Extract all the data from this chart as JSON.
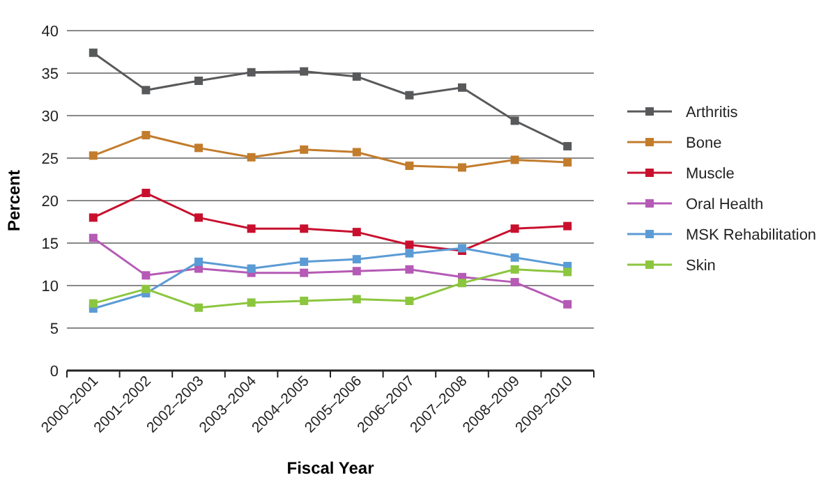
{
  "chart_data": {
    "type": "line",
    "xlabel": "Fiscal Year",
    "ylabel": "Percent",
    "categories": [
      "2000–2001",
      "2001–2002",
      "2002–2003",
      "2003–2004",
      "2004–2005",
      "2005–2006",
      "2006–2007",
      "2007–2008",
      "2008–2009",
      "2009–2010"
    ],
    "series": [
      {
        "name": "Arthritis",
        "color": "#58595b",
        "values": [
          37.4,
          33,
          34.1,
          35.1,
          35.2,
          34.6,
          32.4,
          33.3,
          29.4,
          26.4
        ]
      },
      {
        "name": "Bone",
        "color": "#c27c2c",
        "values": [
          25.3,
          27.7,
          26.2,
          25.1,
          26,
          25.7,
          24.1,
          23.9,
          24.8,
          24.5
        ]
      },
      {
        "name": "Muscle",
        "color": "#c8102e",
        "values": [
          18,
          20.9,
          18,
          16.7,
          16.7,
          16.3,
          14.8,
          14.1,
          16.7,
          17
        ]
      },
      {
        "name": "Oral Health",
        "color": "#b55ab5",
        "values": [
          15.6,
          11.2,
          12,
          11.5,
          11.5,
          11.7,
          11.9,
          11,
          10.4,
          7.8
        ]
      },
      {
        "name": "MSK Rehabilitation",
        "color": "#5b9bd5",
        "values": [
          7.3,
          9.1,
          12.8,
          12,
          12.8,
          13.1,
          13.8,
          14.4,
          13.3,
          12.3
        ]
      },
      {
        "name": "Skin",
        "color": "#8cc63f",
        "values": [
          7.9,
          9.6,
          7.4,
          8,
          8.2,
          8.4,
          8.2,
          10.3,
          11.9,
          11.6
        ]
      }
    ],
    "ylim": [
      0,
      40
    ],
    "yticks": [
      0,
      5,
      10,
      15,
      20,
      25,
      30,
      35,
      40
    ],
    "grid": "y",
    "legend": "right",
    "marker": "square",
    "line_style": "solid"
  }
}
